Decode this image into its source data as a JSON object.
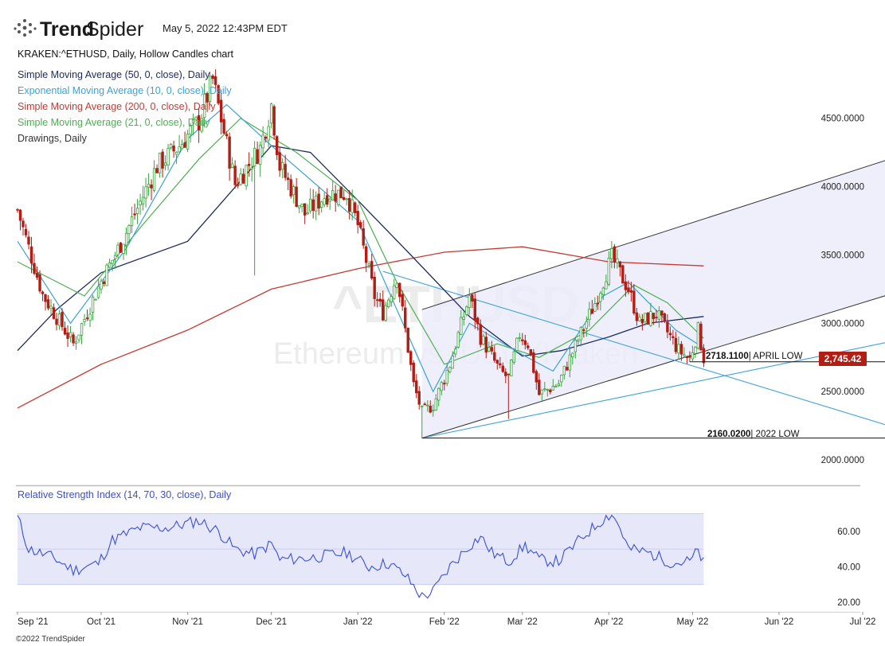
{
  "header": {
    "logo_text_bold": "Trend",
    "logo_text_regular": "Spider",
    "datetime": "May 5, 2022 12:43PM EDT"
  },
  "legend": {
    "symbol": "KRAKEN:^ETHUSD, Daily, Hollow Candles chart",
    "sma50": "Simple Moving Average (50, 0, close), Daily",
    "ema10": "Exponential Moving Average (10, 0, close), Daily",
    "sma200": "Simple Moving Average (200, 0, close), Daily",
    "sma21": "Simple Moving Average (21, 0, close), Daily",
    "drawings": "Drawings, Daily",
    "rsi": "Relative Strength Index (14, 70, 30, close), Daily"
  },
  "watermark": {
    "symbol": "^ETHUSD",
    "name": "Ethereum vs. USD (Kraken"
  },
  "annotations": {
    "april_low_value": "2718.1100",
    "april_low_label": "| APRIL LOW",
    "year_low_value": "2160.0200",
    "year_low_label": "| 2022 LOW",
    "last_price": "2,745.42"
  },
  "colors": {
    "sma50": "#1d2a5c",
    "ema10": "#3aa3d8",
    "sma200": "#c43a32",
    "sma21": "#4caf50",
    "drawings": "#333333",
    "rsi": "#3b4fd1",
    "channel_fill": "#ececfb",
    "up_candle": "#39a43d",
    "down_candle": "#b21d14",
    "last_price_bg": "#b21d14"
  },
  "chart_data": {
    "type": "candlestick",
    "x_ticks": [
      "Sep '21",
      "Oct '21",
      "Nov '21",
      "Dec '21",
      "Jan '22",
      "Feb '22",
      "Mar '22",
      "Apr '22",
      "May '22",
      "Jun '22",
      "Jul '22"
    ],
    "y_ticks": [
      "2000.0000",
      "2500.0000",
      "3000.0000",
      "3500.0000",
      "4000.0000",
      "4500.0000"
    ],
    "ylim": [
      1960,
      4900
    ],
    "rsi_ticks": [
      "20.00",
      "40.00",
      "60.00"
    ],
    "rsi_ylim": [
      15,
      77
    ],
    "rsi_band": [
      30,
      70
    ],
    "anchors": [
      {
        "date": "2021-09-01",
        "price": 3830
      },
      {
        "date": "2021-09-10",
        "price": 3210
      },
      {
        "date": "2021-09-21",
        "price": 2850
      },
      {
        "date": "2021-10-01",
        "price": 3310
      },
      {
        "date": "2021-10-08",
        "price": 3580
      },
      {
        "date": "2021-10-21",
        "price": 4150
      },
      {
        "date": "2021-10-29",
        "price": 4300
      },
      {
        "date": "2021-11-05",
        "price": 4480
      },
      {
        "date": "2021-11-10",
        "price": 4780
      },
      {
        "date": "2021-11-18",
        "price": 4020
      },
      {
        "date": "2021-11-27",
        "price": 4280
      },
      {
        "date": "2021-12-01",
        "price": 4600
      },
      {
        "date": "2021-12-04",
        "price": 4150
      },
      {
        "date": "2021-12-13",
        "price": 3800
      },
      {
        "date": "2021-12-21",
        "price": 3950
      },
      {
        "date": "2021-12-28",
        "price": 3950
      },
      {
        "date": "2022-01-01",
        "price": 3720
      },
      {
        "date": "2022-01-07",
        "price": 3200
      },
      {
        "date": "2022-01-10",
        "price": 3080
      },
      {
        "date": "2022-01-15",
        "price": 3350
      },
      {
        "date": "2022-01-21",
        "price": 2550
      },
      {
        "date": "2022-01-24",
        "price": 2350
      },
      {
        "date": "2022-01-28",
        "price": 2400
      },
      {
        "date": "2022-02-03",
        "price": 2700
      },
      {
        "date": "2022-02-10",
        "price": 3200
      },
      {
        "date": "2022-02-14",
        "price": 2900
      },
      {
        "date": "2022-02-21",
        "price": 2650
      },
      {
        "date": "2022-02-24",
        "price": 2600
      },
      {
        "date": "2022-02-28",
        "price": 2920
      },
      {
        "date": "2022-03-03",
        "price": 2850
      },
      {
        "date": "2022-03-07",
        "price": 2480
      },
      {
        "date": "2022-03-14",
        "price": 2560
      },
      {
        "date": "2022-03-21",
        "price": 2880
      },
      {
        "date": "2022-03-27",
        "price": 3150
      },
      {
        "date": "2022-04-02",
        "price": 3480
      },
      {
        "date": "2022-04-08",
        "price": 3250
      },
      {
        "date": "2022-04-12",
        "price": 3000
      },
      {
        "date": "2022-04-18",
        "price": 3070
      },
      {
        "date": "2022-04-26",
        "price": 2800
      },
      {
        "date": "2022-04-30",
        "price": 2740
      },
      {
        "date": "2022-05-03",
        "price": 2950
      },
      {
        "date": "2022-05-05",
        "price": 2745
      }
    ],
    "lows": [
      {
        "date": "2021-11-25",
        "price": 3350
      },
      {
        "date": "2022-01-24",
        "price": 2160.02
      },
      {
        "date": "2022-02-24",
        "price": 2300
      },
      {
        "date": "2022-04-30",
        "price": 2718.11
      }
    ],
    "sma200": [
      {
        "date": "2021-09-01",
        "price": 2380
      },
      {
        "date": "2021-10-01",
        "price": 2700
      },
      {
        "date": "2021-11-01",
        "price": 2950
      },
      {
        "date": "2021-12-01",
        "price": 3250
      },
      {
        "date": "2022-01-01",
        "price": 3400
      },
      {
        "date": "2022-02-01",
        "price": 3520
      },
      {
        "date": "2022-03-01",
        "price": 3560
      },
      {
        "date": "2022-04-01",
        "price": 3450
      },
      {
        "date": "2022-05-05",
        "price": 3420
      }
    ],
    "sma50": [
      {
        "date": "2021-09-01",
        "price": 2800
      },
      {
        "date": "2021-09-15",
        "price": 3100
      },
      {
        "date": "2021-10-01",
        "price": 3370
      },
      {
        "date": "2021-11-01",
        "price": 3600
      },
      {
        "date": "2021-12-01",
        "price": 4300
      },
      {
        "date": "2021-12-15",
        "price": 4250
      },
      {
        "date": "2022-01-01",
        "price": 3900
      },
      {
        "date": "2022-01-20",
        "price": 3500
      },
      {
        "date": "2022-02-10",
        "price": 3050
      },
      {
        "date": "2022-03-01",
        "price": 2760
      },
      {
        "date": "2022-03-15",
        "price": 2800
      },
      {
        "date": "2022-04-01",
        "price": 2900
      },
      {
        "date": "2022-04-15",
        "price": 3000
      },
      {
        "date": "2022-05-05",
        "price": 3050
      }
    ],
    "sma21": [
      {
        "date": "2021-09-01",
        "price": 3450
      },
      {
        "date": "2021-09-25",
        "price": 3200
      },
      {
        "date": "2021-10-15",
        "price": 3700
      },
      {
        "date": "2021-11-05",
        "price": 4200
      },
      {
        "date": "2021-11-20",
        "price": 4500
      },
      {
        "date": "2021-12-10",
        "price": 4250
      },
      {
        "date": "2022-01-01",
        "price": 3900
      },
      {
        "date": "2022-01-15",
        "price": 3300
      },
      {
        "date": "2022-02-01",
        "price": 2700
      },
      {
        "date": "2022-02-20",
        "price": 2850
      },
      {
        "date": "2022-03-07",
        "price": 2750
      },
      {
        "date": "2022-03-25",
        "price": 2950
      },
      {
        "date": "2022-04-10",
        "price": 3280
      },
      {
        "date": "2022-04-22",
        "price": 3150
      },
      {
        "date": "2022-05-05",
        "price": 2890
      }
    ],
    "ema10": [
      {
        "date": "2021-09-01",
        "price": 3600
      },
      {
        "date": "2021-09-20",
        "price": 3000
      },
      {
        "date": "2021-10-10",
        "price": 3550
      },
      {
        "date": "2021-11-01",
        "price": 4350
      },
      {
        "date": "2021-11-15",
        "price": 4600
      },
      {
        "date": "2021-12-01",
        "price": 4300
      },
      {
        "date": "2022-01-01",
        "price": 3750
      },
      {
        "date": "2022-01-15",
        "price": 3100
      },
      {
        "date": "2022-01-28",
        "price": 2500
      },
      {
        "date": "2022-02-10",
        "price": 3000
      },
      {
        "date": "2022-03-01",
        "price": 2770
      },
      {
        "date": "2022-03-12",
        "price": 2650
      },
      {
        "date": "2022-03-30",
        "price": 3200
      },
      {
        "date": "2022-04-08",
        "price": 3300
      },
      {
        "date": "2022-04-25",
        "price": 2950
      },
      {
        "date": "2022-05-05",
        "price": 2820
      }
    ],
    "channel": {
      "lower": [
        {
          "date": "2022-01-24",
          "price": 2160
        },
        {
          "date": "2022-07-12",
          "price": 3220
        }
      ],
      "upper": [
        {
          "date": "2022-01-24",
          "price": 3100
        },
        {
          "date": "2022-07-12",
          "price": 4210
        }
      ],
      "middle_end": {
        "date": "2022-05-05",
        "price": 3060
      }
    },
    "trendlines": [
      {
        "from": {
          "date": "2022-01-10",
          "price": 3380
        },
        "to": {
          "date": "2022-07-12",
          "price": 2240
        }
      },
      {
        "from": {
          "date": "2022-01-24",
          "price": 2160
        },
        "to": {
          "date": "2022-07-12",
          "price": 2870
        }
      }
    ],
    "hlines": [
      {
        "from": "2022-04-30",
        "to": "2022-07-12",
        "price": 2718.11
      },
      {
        "from": "2022-01-24",
        "to": "2022-07-12",
        "price": 2160.02
      }
    ],
    "rsi_anchors": [
      {
        "date": "2021-09-01",
        "value": 68
      },
      {
        "date": "2021-09-05",
        "value": 50
      },
      {
        "date": "2021-09-14",
        "value": 45
      },
      {
        "date": "2021-09-21",
        "value": 38
      },
      {
        "date": "2021-09-30",
        "value": 42
      },
      {
        "date": "2021-10-05",
        "value": 55
      },
      {
        "date": "2021-10-15",
        "value": 62
      },
      {
        "date": "2021-10-25",
        "value": 62
      },
      {
        "date": "2021-11-05",
        "value": 66
      },
      {
        "date": "2021-11-12",
        "value": 60
      },
      {
        "date": "2021-11-18",
        "value": 50
      },
      {
        "date": "2021-11-25",
        "value": 47
      },
      {
        "date": "2021-12-01",
        "value": 53
      },
      {
        "date": "2021-12-04",
        "value": 44
      },
      {
        "date": "2021-12-15",
        "value": 45
      },
      {
        "date": "2021-12-28",
        "value": 48
      },
      {
        "date": "2022-01-05",
        "value": 40
      },
      {
        "date": "2022-01-12",
        "value": 42
      },
      {
        "date": "2022-01-18",
        "value": 35
      },
      {
        "date": "2022-01-24",
        "value": 23
      },
      {
        "date": "2022-01-28",
        "value": 26
      },
      {
        "date": "2022-02-03",
        "value": 40
      },
      {
        "date": "2022-02-10",
        "value": 52
      },
      {
        "date": "2022-02-14",
        "value": 57
      },
      {
        "date": "2022-02-18",
        "value": 48
      },
      {
        "date": "2022-02-24",
        "value": 43
      },
      {
        "date": "2022-03-02",
        "value": 52
      },
      {
        "date": "2022-03-07",
        "value": 44
      },
      {
        "date": "2022-03-14",
        "value": 43
      },
      {
        "date": "2022-03-22",
        "value": 56
      },
      {
        "date": "2022-03-30",
        "value": 67
      },
      {
        "date": "2022-04-02",
        "value": 70
      },
      {
        "date": "2022-04-05",
        "value": 62
      },
      {
        "date": "2022-04-08",
        "value": 50
      },
      {
        "date": "2022-04-15",
        "value": 48
      },
      {
        "date": "2022-04-24",
        "value": 42
      },
      {
        "date": "2022-04-30",
        "value": 43
      },
      {
        "date": "2022-05-03",
        "value": 49
      },
      {
        "date": "2022-05-05",
        "value": 42
      }
    ]
  }
}
